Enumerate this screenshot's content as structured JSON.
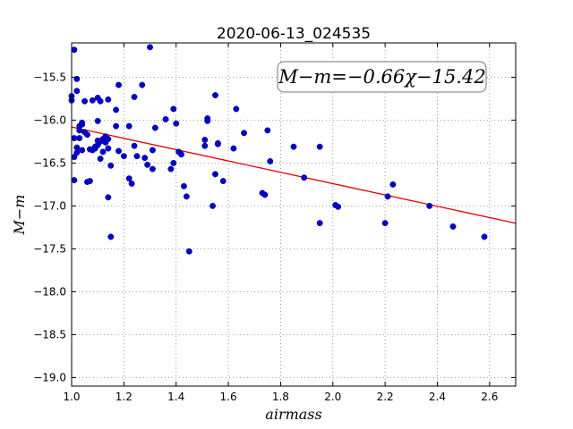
{
  "chart_data": {
    "type": "scatter",
    "title": "2020-06-13_024535",
    "xlabel": "airmass",
    "ylabel": "M−m",
    "xlim": [
      1.0,
      2.7
    ],
    "ylim": [
      -19.1,
      -15.1
    ],
    "y_inverted": true,
    "grid": true,
    "x_ticks": [
      "1.0",
      "1.2",
      "1.4",
      "1.6",
      "1.8",
      "2.0",
      "2.2",
      "2.4",
      "2.6"
    ],
    "x_tick_values": [
      1.0,
      1.2,
      1.4,
      1.6,
      1.8,
      2.0,
      2.2,
      2.4,
      2.6
    ],
    "y_ticks": [
      "−15.5",
      "−16.0",
      "−16.5",
      "−17.0",
      "−17.5",
      "−18.0",
      "−18.5",
      "−19.0"
    ],
    "y_tick_values": [
      -15.5,
      -16.0,
      -16.5,
      -17.0,
      -17.5,
      -18.0,
      -18.5,
      -19.0
    ],
    "annotation": "M−m=−0.66χ−15.42",
    "annotation_placement": "top-right",
    "fit": {
      "slope": -0.66,
      "intercept": -15.42,
      "color": "#e00000"
    },
    "point_color": "#0000cc",
    "points": [
      [
        1.0,
        -15.72
      ],
      [
        1.0,
        -15.77
      ],
      [
        1.01,
        -16.21
      ],
      [
        1.01,
        -16.43
      ],
      [
        1.01,
        -16.7
      ],
      [
        1.01,
        -15.18
      ],
      [
        1.02,
        -15.52
      ],
      [
        1.02,
        -15.66
      ],
      [
        1.02,
        -16.32
      ],
      [
        1.02,
        -16.38
      ],
      [
        1.03,
        -16.21
      ],
      [
        1.03,
        -16.07
      ],
      [
        1.03,
        -16.12
      ],
      [
        1.04,
        -16.03
      ],
      [
        1.04,
        -16.05
      ],
      [
        1.04,
        -16.35
      ],
      [
        1.05,
        -15.78
      ],
      [
        1.05,
        -16.14
      ],
      [
        1.06,
        -16.17
      ],
      [
        1.06,
        -16.72
      ],
      [
        1.07,
        -16.71
      ],
      [
        1.07,
        -16.34
      ],
      [
        1.08,
        -16.35
      ],
      [
        1.08,
        -15.77
      ],
      [
        1.09,
        -16.33
      ],
      [
        1.09,
        -16.31
      ],
      [
        1.1,
        -15.74
      ],
      [
        1.1,
        -16.01
      ],
      [
        1.1,
        -16.24
      ],
      [
        1.1,
        -16.29
      ],
      [
        1.11,
        -16.45
      ],
      [
        1.11,
        -15.78
      ],
      [
        1.11,
        -16.25
      ],
      [
        1.12,
        -16.22
      ],
      [
        1.12,
        -16.37
      ],
      [
        1.13,
        -16.19
      ],
      [
        1.13,
        -16.26
      ],
      [
        1.14,
        -15.76
      ],
      [
        1.14,
        -16.22
      ],
      [
        1.14,
        -16.33
      ],
      [
        1.14,
        -16.9
      ],
      [
        1.15,
        -16.53
      ],
      [
        1.15,
        -17.36
      ],
      [
        1.17,
        -15.88
      ],
      [
        1.17,
        -16.07
      ],
      [
        1.18,
        -15.59
      ],
      [
        1.18,
        -16.36
      ],
      [
        1.2,
        -16.42
      ],
      [
        1.22,
        -16.07
      ],
      [
        1.22,
        -16.68
      ],
      [
        1.23,
        -16.74
      ],
      [
        1.24,
        -15.73
      ],
      [
        1.24,
        -16.3
      ],
      [
        1.25,
        -16.42
      ],
      [
        1.27,
        -15.59
      ],
      [
        1.28,
        -16.44
      ],
      [
        1.29,
        -16.52
      ],
      [
        1.3,
        -15.15
      ],
      [
        1.31,
        -16.57
      ],
      [
        1.31,
        -16.35
      ],
      [
        1.32,
        -16.09
      ],
      [
        1.36,
        -15.99
      ],
      [
        1.38,
        -16.57
      ],
      [
        1.39,
        -15.87
      ],
      [
        1.39,
        -16.5
      ],
      [
        1.4,
        -16.04
      ],
      [
        1.41,
        -16.37
      ],
      [
        1.42,
        -16.4
      ],
      [
        1.43,
        -16.77
      ],
      [
        1.44,
        -16.89
      ],
      [
        1.45,
        -17.53
      ],
      [
        1.51,
        -16.23
      ],
      [
        1.51,
        -16.3
      ],
      [
        1.52,
        -15.98
      ],
      [
        1.52,
        -16.01
      ],
      [
        1.54,
        -17.0
      ],
      [
        1.55,
        -15.71
      ],
      [
        1.55,
        -16.63
      ],
      [
        1.56,
        -16.27
      ],
      [
        1.56,
        -16.28
      ],
      [
        1.58,
        -16.71
      ],
      [
        1.62,
        -16.33
      ],
      [
        1.63,
        -15.87
      ],
      [
        1.66,
        -16.15
      ],
      [
        1.73,
        -16.85
      ],
      [
        1.74,
        -16.87
      ],
      [
        1.75,
        -16.12
      ],
      [
        1.76,
        -16.48
      ],
      [
        1.85,
        -16.31
      ],
      [
        1.89,
        -16.67
      ],
      [
        1.95,
        -16.31
      ],
      [
        1.95,
        -17.2
      ],
      [
        2.01,
        -16.99
      ],
      [
        2.02,
        -17.01
      ],
      [
        2.2,
        -17.2
      ],
      [
        2.21,
        -16.89
      ],
      [
        2.23,
        -16.75
      ],
      [
        2.37,
        -17.0
      ],
      [
        2.46,
        -17.24
      ],
      [
        2.58,
        -17.36
      ]
    ]
  }
}
